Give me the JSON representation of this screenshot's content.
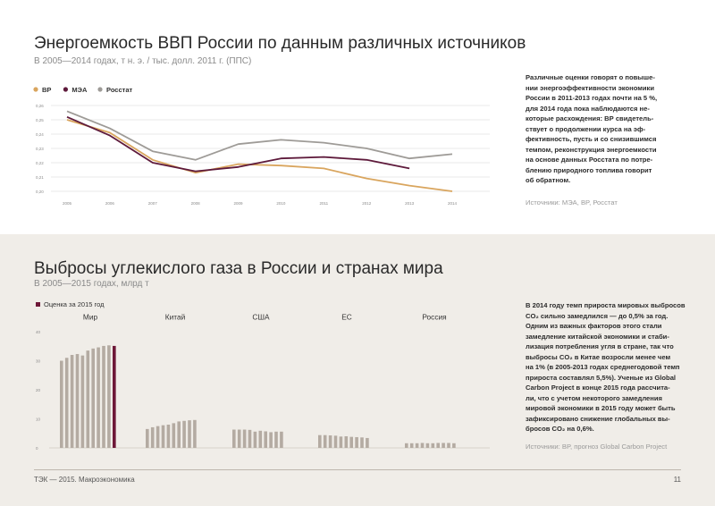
{
  "page": {
    "footer_left": "ТЭК — 2015. Макроэкономика",
    "page_number": "11"
  },
  "section1": {
    "title": "Энергоемкость ВВП России по данным различных источников",
    "subtitle": "В 2005—2014 годах, т н. э. / тыс. долл. 2011 г. (ППС)",
    "side_text": [
      "Различные оценки говорят о повыше-",
      "нии энергоэффективности экономики",
      "России в 2011-2013 годах почти на 5 %,",
      "для 2014 года пока наблюдаются не-",
      "которые расхождения: ВР свидетель-",
      "ствует о продолжении курса на эф-",
      "фективность, пусть и со снизившимся",
      "темпом, реконструкция энергоемкости",
      "на основе данных Росстата по потре-",
      "блению природного топлива говорит",
      "об обратном."
    ],
    "source": "Источники: МЭА, BP, Росстат"
  },
  "section2": {
    "title": "Выбросы углекислого газа в России и странах мира",
    "subtitle": "В 2005—2015 годах, млрд т",
    "side_text": [
      "В 2014 году темп прироста мировых выбросов",
      "CO₂ сильно замедлился — до 0,5% за год.",
      "Одним из важных факторов этого стали",
      "замедление китайской экономики и стаби-",
      "лизация потребления угля в стране, так что",
      "выбросы CO₂ в Китае возросли менее чем",
      "на 1% (в 2005-2013 годах среднегодовой темп",
      "прироста составлял 5,5%). Ученые из Global",
      "Carbon Project в конце 2015 года рассчита-",
      "ли, что с учетом некоторого замедления",
      "мировой экономики в 2015 году может быть",
      "зафиксировано снижение глобальных вы-",
      "бросов CO₂ на 0,6%."
    ],
    "source": "Источники: BP, прогноз Global Carbon Project"
  },
  "chart_data": [
    {
      "type": "line",
      "x": [
        "2005",
        "2006",
        "2007",
        "2008",
        "2009",
        "2010",
        "2011",
        "2012",
        "2013",
        "2014"
      ],
      "ylim": [
        0.2,
        0.265
      ],
      "yticks": [
        "0,20",
        "0,21",
        "0,22",
        "0,23",
        "0,24",
        "0,25",
        "0,26"
      ],
      "grid": true,
      "legend_position": "top-left",
      "series": [
        {
          "name": "BP",
          "color": "#d9a55e",
          "values": [
            0.25,
            0.241,
            0.222,
            0.213,
            0.219,
            0.218,
            0.216,
            0.209,
            0.204,
            0.2
          ]
        },
        {
          "name": "МЭА",
          "color": "#5e1a3b",
          "values": [
            0.252,
            0.239,
            0.22,
            0.214,
            0.217,
            0.223,
            0.224,
            0.222,
            0.216,
            null
          ]
        },
        {
          "name": "Росстат",
          "color": "#9e9b97",
          "values": [
            0.256,
            0.244,
            0.228,
            0.222,
            0.233,
            0.236,
            0.234,
            0.23,
            0.223,
            0.226
          ]
        }
      ]
    },
    {
      "type": "bar",
      "ylim": [
        0,
        40
      ],
      "yticks": [
        "0",
        "10",
        "20",
        "30",
        "40"
      ],
      "grid": false,
      "legend": [
        {
          "name": "Оценка за 2015 год",
          "color": "#6e1838"
        }
      ],
      "base_color": "#b4aba2",
      "estimate_color": "#6e1838",
      "groups": [
        {
          "name": "Мир",
          "values": [
            30,
            31,
            32,
            32.3,
            31.8,
            33.5,
            34.2,
            34.6,
            35.1,
            35.3,
            35.1
          ],
          "estimate_last": true
        },
        {
          "name": "Китай",
          "values": [
            6.5,
            7.1,
            7.5,
            7.8,
            8.0,
            8.5,
            9.1,
            9.3,
            9.5,
            9.6
          ],
          "estimate_last": false
        },
        {
          "name": "США",
          "values": [
            6.3,
            6.3,
            6.3,
            6.2,
            5.6,
            5.9,
            5.7,
            5.4,
            5.6,
            5.6
          ],
          "estimate_last": false
        },
        {
          "name": "ЕС",
          "values": [
            4.4,
            4.4,
            4.3,
            4.2,
            3.9,
            4.0,
            3.8,
            3.7,
            3.6,
            3.4
          ],
          "estimate_last": false
        },
        {
          "name": "Россия",
          "values": [
            1.6,
            1.6,
            1.6,
            1.7,
            1.6,
            1.6,
            1.7,
            1.7,
            1.7,
            1.6
          ],
          "estimate_last": false
        }
      ]
    }
  ]
}
